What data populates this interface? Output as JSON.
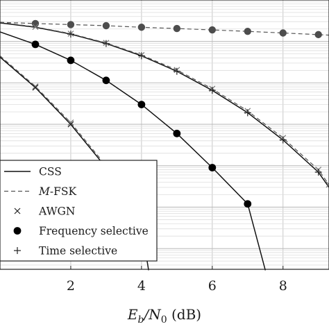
{
  "chart_data": {
    "type": "line",
    "title": "",
    "xlabel_parts": {
      "main": "E",
      "sub1": "b",
      "sep": "/N",
      "sub2": "0",
      "unit": " (dB)"
    },
    "ylabel": "",
    "xlim": [
      0,
      9.3
    ],
    "ylim_log10": [
      -6.5,
      0
    ],
    "x_ticks": [
      2,
      4,
      6,
      8
    ],
    "x_tick_labels": [
      "2",
      "4",
      "6",
      "8"
    ],
    "y_major_log10": [
      -1,
      -2,
      -3,
      -4,
      -5,
      -6
    ],
    "grid": true,
    "legend_position": "bottom-left",
    "legend": [
      {
        "label": "CSS",
        "style": "solid-line"
      },
      {
        "label_italic": "M",
        "label": "-FSK",
        "style": "dashed-line"
      },
      {
        "label": "AWGN",
        "style": "x-marker"
      },
      {
        "label": "Frequency selective",
        "style": "circle-marker"
      },
      {
        "label": "Time selective",
        "style": "plus-marker"
      }
    ],
    "series": [
      {
        "marker": "circle-gray",
        "style": "dashed",
        "x": [
          0,
          1,
          2,
          3,
          4,
          5,
          6,
          7,
          8,
          9,
          9.3
        ],
        "y": [
          0.29,
          0.27,
          0.255,
          0.24,
          0.22,
          0.205,
          0.19,
          0.175,
          0.16,
          0.146,
          0.142
        ],
        "marker_x": [
          1,
          2,
          3,
          4,
          5,
          6,
          7,
          8,
          9
        ]
      },
      {
        "marker": "none",
        "style": "solid",
        "x": [
          0,
          1,
          2,
          3,
          4,
          5,
          6,
          7,
          8,
          9,
          9.3
        ],
        "y": [
          0.28,
          0.22,
          0.15,
          0.089,
          0.045,
          0.019,
          0.0066,
          0.0019,
          0.00042,
          7e-05,
          3e-05
        ]
      },
      {
        "marker": "none",
        "style": "solid",
        "x": [
          0,
          1,
          2,
          3,
          4,
          5,
          6,
          7,
          7.5
        ],
        "y": [
          0.17,
          0.085,
          0.035,
          0.0115,
          0.003,
          0.0006,
          9e-05,
          1.2e-05,
          3e-07
        ]
      },
      {
        "marker": "none",
        "style": "solid",
        "x": [
          0,
          1,
          2,
          3,
          4,
          4.2
        ],
        "y": [
          0.042,
          0.0077,
          0.001,
          9e-05,
          3.5e-06,
          3e-07
        ]
      },
      {
        "marker": "x-light",
        "style": "dashed",
        "x": [
          0,
          1,
          2,
          3,
          4,
          5,
          6,
          7,
          8,
          9,
          9.3
        ],
        "y": [
          0.29,
          0.225,
          0.154,
          0.092,
          0.047,
          0.0205,
          0.0072,
          0.0021,
          0.00047,
          8e-05,
          3.5e-05
        ]
      },
      {
        "marker": "x-light",
        "style": "dashed",
        "x": [
          0,
          1,
          2,
          3
        ],
        "y": [
          0.045,
          0.0082,
          0.0011,
          0.0001
        ]
      },
      {
        "marker": "plus",
        "style": "none",
        "x": [
          2,
          3,
          4,
          5,
          6,
          7,
          8,
          9
        ],
        "y": [
          0.15,
          0.089,
          0.045,
          0.019,
          0.0066,
          0.0019,
          0.00042,
          7e-05
        ]
      },
      {
        "marker": "x",
        "style": "none",
        "x": [
          1,
          2
        ],
        "y": [
          0.0077,
          0.001
        ]
      },
      {
        "marker": "circle-black",
        "style": "none",
        "x": [
          1,
          2,
          3,
          4,
          5,
          6,
          7
        ],
        "y": [
          0.085,
          0.035,
          0.0115,
          0.003,
          0.0006,
          9e-05,
          1.2e-05
        ]
      }
    ]
  }
}
